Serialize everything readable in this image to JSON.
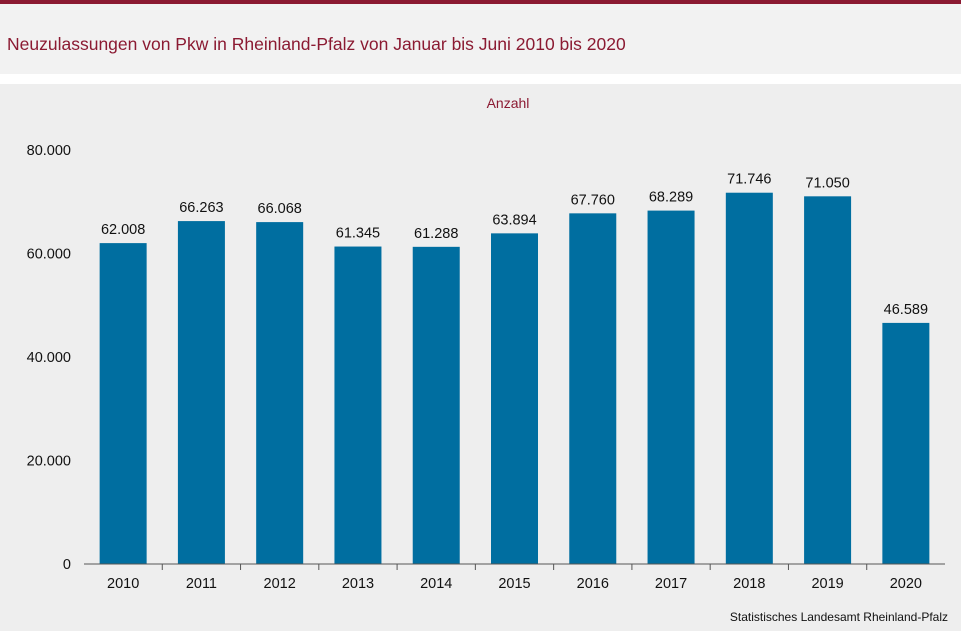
{
  "header": {
    "title": "Neuzulassungen von Pkw in Rheinland-Pfalz von Januar bis Juni 2010 bis 2020"
  },
  "source": "Statistisches Landesamt  Rheinland-Pfalz",
  "colors": {
    "accent": "#8b1a32",
    "bar": "#006ea0"
  },
  "chart_data": {
    "type": "bar",
    "title": "Neuzulassungen von Pkw in Rheinland-Pfalz von Januar bis Juni 2010 bis 2020",
    "ylabel": "Anzahl",
    "xlabel": "",
    "categories": [
      "2010",
      "2011",
      "2012",
      "2013",
      "2014",
      "2015",
      "2016",
      "2017",
      "2018",
      "2019",
      "2020"
    ],
    "values": [
      62008,
      66263,
      66068,
      61345,
      61288,
      63894,
      67760,
      68289,
      71746,
      71050,
      46589
    ],
    "value_labels": [
      "62.008",
      "66.263",
      "66.068",
      "61.345",
      "61.288",
      "63.894",
      "67.760",
      "68.289",
      "71.746",
      "71.050",
      "46.589"
    ],
    "ylim": [
      0,
      80000
    ],
    "yticks": [
      0,
      20000,
      40000,
      60000,
      80000
    ],
    "ytick_labels": [
      "0",
      "20.000",
      "40.000",
      "60.000",
      "80.000"
    ],
    "grid": false,
    "legend": "none"
  }
}
